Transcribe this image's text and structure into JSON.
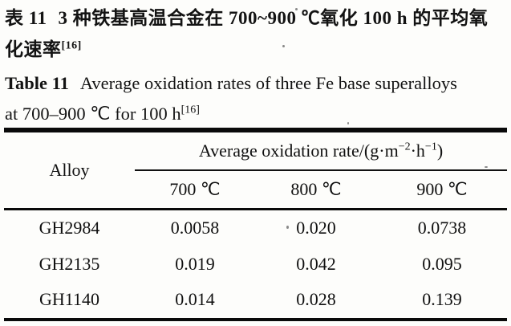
{
  "captions": {
    "zh": {
      "label": "表 11",
      "line1_rest": "3 种铁基高温合金在 700~900 ℃氧化 100 h 的平均氧",
      "line2": "化速率",
      "ref": "[16]"
    },
    "en": {
      "label": "Table 11",
      "line1_rest": "Average oxidation rates of three Fe base superalloys",
      "line2": "at 700–900 ℃ for 100 h",
      "ref": "[16]"
    }
  },
  "table": {
    "header": {
      "alloy": "Alloy",
      "spanner": {
        "part1": "Average oxidation rate/(g·m",
        "sup1": "−2",
        "part2": "·h",
        "sup2": "−1",
        "part3": ")"
      },
      "temps": [
        "700 ℃",
        "800 ℃",
        "900 ℃"
      ]
    },
    "rows": [
      {
        "alloy": "GH2984",
        "values": [
          "0.0058",
          "0.020",
          "0.0738"
        ]
      },
      {
        "alloy": "GH2135",
        "values": [
          "0.019",
          "0.042",
          "0.095"
        ]
      },
      {
        "alloy": "GH1140",
        "values": [
          "0.014",
          "0.028",
          "0.139"
        ]
      }
    ]
  },
  "chart_data": {
    "type": "table",
    "title_zh": "表 11 3 种铁基高温合金在 700~900 ℃氧化 100 h 的平均氧化速率[16]",
    "title_en": "Table 11 Average oxidation rates of three Fe base superalloys at 700–900 ℃ for 100 h[16]",
    "columns": [
      "Alloy",
      "700 ℃",
      "800 ℃",
      "900 ℃"
    ],
    "unit": "g·m−2·h−1",
    "rows": [
      [
        "GH2984",
        0.0058,
        0.02,
        0.0738
      ],
      [
        "GH2135",
        0.019,
        0.042,
        0.095
      ],
      [
        "GH1140",
        0.014,
        0.028,
        0.139
      ]
    ]
  }
}
